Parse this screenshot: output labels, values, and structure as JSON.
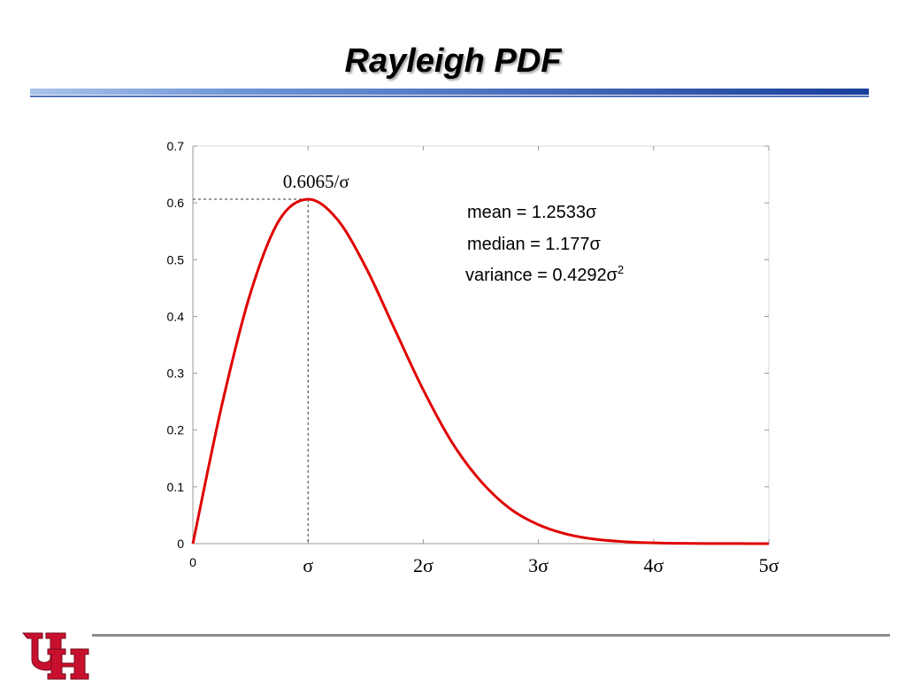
{
  "slide": {
    "title": "Rayleigh PDF"
  },
  "colors": {
    "curve": "#e00000",
    "title_rule_dark": "#1a3f9c",
    "title_rule_light": "#a9c4ea",
    "logo_red": "#c8102e",
    "footer_rule": "#8c8c8c"
  },
  "chart_data": {
    "type": "line",
    "title": "",
    "xlabel": "",
    "ylabel": "",
    "xlim": [
      0,
      5
    ],
    "ylim": [
      0,
      0.7
    ],
    "grid": false,
    "x_ticks": [
      {
        "value": 0,
        "label": "0"
      },
      {
        "value": 1,
        "label": "σ"
      },
      {
        "value": 2,
        "label": "2σ"
      },
      {
        "value": 3,
        "label": "3σ"
      },
      {
        "value": 4,
        "label": "4σ"
      },
      {
        "value": 5,
        "label": "5σ"
      }
    ],
    "y_ticks": [
      {
        "value": 0,
        "label": "0"
      },
      {
        "value": 0.1,
        "label": "0.1"
      },
      {
        "value": 0.2,
        "label": "0.2"
      },
      {
        "value": 0.3,
        "label": "0.3"
      },
      {
        "value": 0.4,
        "label": "0.4"
      },
      {
        "value": 0.5,
        "label": "0.5"
      },
      {
        "value": 0.6,
        "label": "0.6"
      },
      {
        "value": 0.7,
        "label": "0.7"
      }
    ],
    "series": [
      {
        "x": [
          0,
          0.25,
          0.5,
          0.75,
          1,
          1.25,
          1.5,
          1.75,
          2,
          2.25,
          2.5,
          2.75,
          3,
          3.25,
          3.5,
          3.75,
          4,
          4.25,
          4.5,
          4.75,
          5
        ],
        "y": [
          0,
          0.2424,
          0.4412,
          0.5697,
          0.6065,
          0.5719,
          0.487,
          0.3784,
          0.2707,
          0.1781,
          0.1098,
          0.0621,
          0.0333,
          0.0165,
          0.0076,
          0.0034,
          0.0013,
          0.0005,
          0.0002,
          0.0001,
          0.0
        ]
      }
    ],
    "annotations": {
      "peak_label": "0.6065/σ",
      "peak": {
        "x": 1,
        "y": 0.6065
      },
      "stats": [
        {
          "text": "mean = 1.2533σ"
        },
        {
          "text": "median = 1.177σ"
        },
        {
          "text": "variance = 0.4292σ",
          "sup": "2"
        }
      ]
    }
  }
}
